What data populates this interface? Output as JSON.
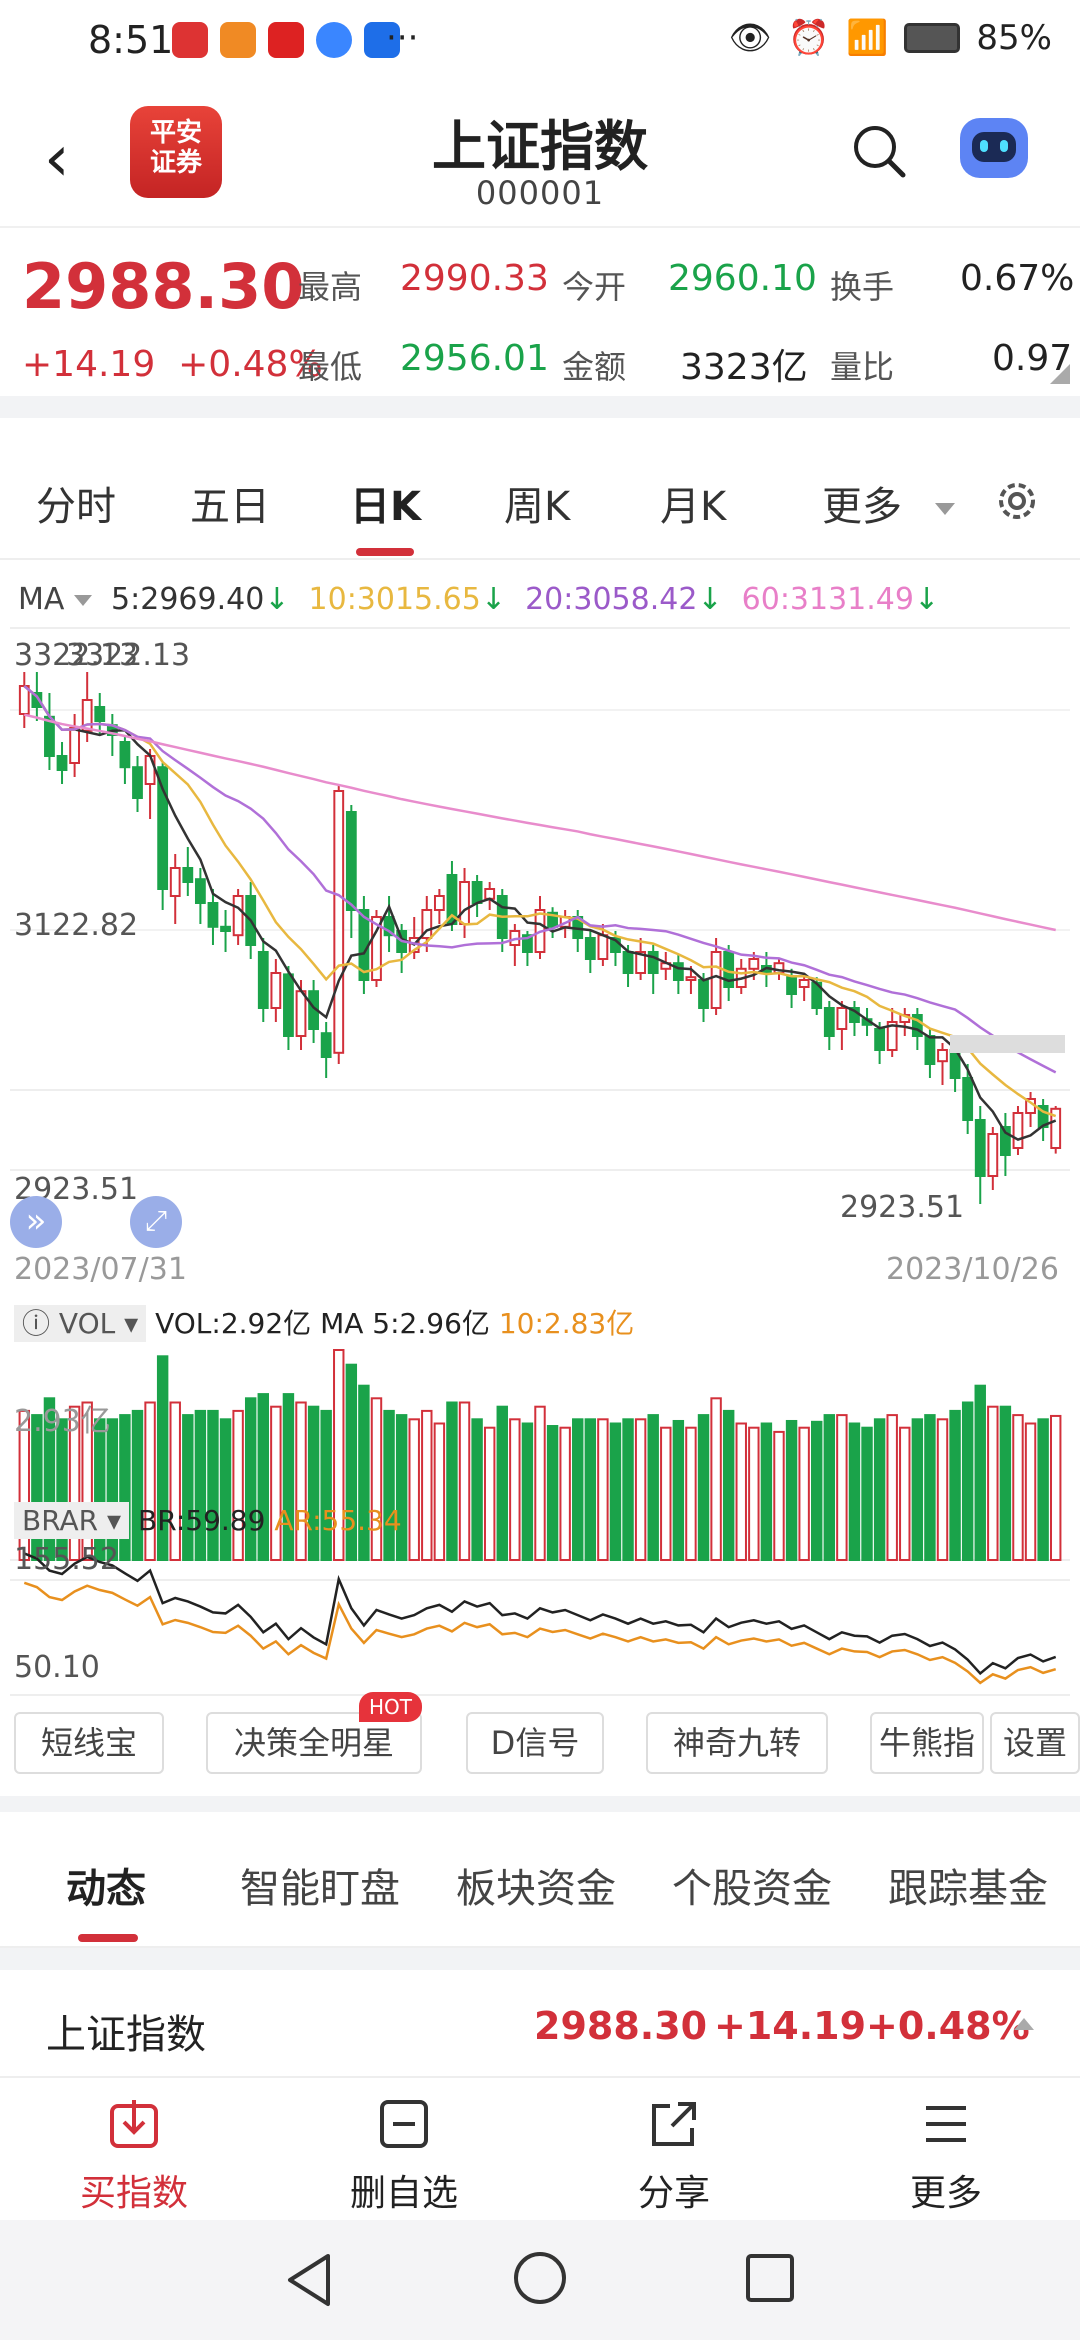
{
  "status_bar": {
    "time": "8:51",
    "battery": "85%",
    "more": "···"
  },
  "header": {
    "title": "上证指数",
    "code": "000001",
    "logo_lines": [
      "平安",
      "证券"
    ]
  },
  "quote": {
    "price": "2988.30",
    "change": "+14.19",
    "change_pct": "+0.48%",
    "high_label": "最高",
    "high": "2990.33",
    "open_label": "今开",
    "open": "2960.10",
    "turnover_label": "换手",
    "turnover": "0.67%",
    "low_label": "最低",
    "low": "2956.01",
    "amount_label": "金额",
    "amount": "3323亿",
    "vol_ratio_label": "量比",
    "vol_ratio": "0.97"
  },
  "period_tabs": [
    "分时",
    "五日",
    "日K",
    "周K",
    "月K",
    "更多"
  ],
  "ma": {
    "label": "MA",
    "ma5": "5:2969.40",
    "ma10": "10:3015.65",
    "ma20": "20:3058.42",
    "ma60": "60:3131.49",
    "arrow": "↓"
  },
  "price_axis": {
    "top": "3322.13",
    "mid": "3122.82",
    "low": "2923.51",
    "top_marker": "3322.13",
    "low_marker": "2923.51"
  },
  "dates": {
    "start": "2023/07/31",
    "end": "2023/10/26"
  },
  "vol": {
    "label": "VOL",
    "vol": "VOL:2.92亿",
    "ma5": "MA 5:2.96亿",
    "ma10": "10:2.83亿",
    "axis": "2.93亿"
  },
  "brar": {
    "label": "BRAR",
    "br": "BR:59.89",
    "ar": "AR:55.34",
    "top": "155.52",
    "bottom": "50.10"
  },
  "function_buttons": [
    "短线宝",
    "决策全明星",
    "D信号",
    "神奇九转",
    "牛熊指",
    "设置"
  ],
  "hot_badge": "HOT",
  "bottom_tabs": [
    "动态",
    "智能盯盘",
    "板块资金",
    "个股资金",
    "跟踪基金"
  ],
  "index_row": {
    "name": "上证指数",
    "price": "2988.30",
    "change": "+14.19",
    "pct": "+0.48%"
  },
  "actions": [
    "买指数",
    "删自选",
    "分享",
    "更多"
  ],
  "colors": {
    "up": "#d2303a",
    "down": "#1aa34a",
    "ma5": "#333333",
    "ma10": "#e8b840",
    "ma20": "#b070d8",
    "ma60": "#e88ccc"
  },
  "chart_data": {
    "type": "candlestick",
    "x": [
      "2023/07/31",
      "2023/10/26"
    ],
    "ylim": [
      2923.51,
      3322.13
    ],
    "candles": [
      [
        3270,
        3290,
        3260,
        3300
      ],
      [
        3285,
        3275,
        3265,
        3300
      ],
      [
        3268,
        3240,
        3230,
        3285
      ],
      [
        3240,
        3230,
        3220,
        3250
      ],
      [
        3235,
        3260,
        3225,
        3270
      ],
      [
        3258,
        3280,
        3250,
        3300
      ],
      [
        3275,
        3265,
        3255,
        3285
      ],
      [
        3262,
        3255,
        3240,
        3270
      ],
      [
        3250,
        3232,
        3220,
        3255
      ],
      [
        3232,
        3210,
        3200,
        3240
      ],
      [
        3220,
        3240,
        3195,
        3245
      ],
      [
        3232,
        3145,
        3130,
        3235
      ],
      [
        3140,
        3160,
        3120,
        3170
      ],
      [
        3160,
        3150,
        3140,
        3175
      ],
      [
        3152,
        3135,
        3120,
        3160
      ],
      [
        3135,
        3118,
        3105,
        3145
      ],
      [
        3118,
        3115,
        3100,
        3130
      ],
      [
        3112,
        3140,
        3105,
        3145
      ],
      [
        3140,
        3105,
        3095,
        3150
      ],
      [
        3100,
        3060,
        3050,
        3110
      ],
      [
        3060,
        3085,
        3050,
        3095
      ],
      [
        3084,
        3040,
        3030,
        3090
      ],
      [
        3040,
        3072,
        3030,
        3080
      ],
      [
        3072,
        3045,
        3035,
        3080
      ],
      [
        3042,
        3025,
        3010,
        3050
      ],
      [
        3028,
        3215,
        3020,
        3220
      ],
      [
        3200,
        3130,
        3110,
        3205
      ],
      [
        3130,
        3080,
        3070,
        3140
      ],
      [
        3080,
        3125,
        3075,
        3130
      ],
      [
        3125,
        3112,
        3100,
        3140
      ],
      [
        3115,
        3100,
        3085,
        3120
      ],
      [
        3100,
        3110,
        3095,
        3125
      ],
      [
        3110,
        3130,
        3100,
        3140
      ],
      [
        3130,
        3140,
        3120,
        3145
      ],
      [
        3155,
        3120,
        3115,
        3165
      ],
      [
        3120,
        3150,
        3110,
        3160
      ],
      [
        3150,
        3135,
        3125,
        3155
      ],
      [
        3138,
        3145,
        3130,
        3150
      ],
      [
        3140,
        3110,
        3100,
        3145
      ],
      [
        3105,
        3115,
        3090,
        3120
      ],
      [
        3112,
        3100,
        3090,
        3115
      ],
      [
        3100,
        3130,
        3095,
        3140
      ],
      [
        3128,
        3118,
        3110,
        3132
      ],
      [
        3118,
        3125,
        3110,
        3130
      ],
      [
        3125,
        3110,
        3100,
        3130
      ],
      [
        3110,
        3095,
        3085,
        3115
      ],
      [
        3095,
        3112,
        3090,
        3120
      ],
      [
        3110,
        3100,
        3090,
        3115
      ],
      [
        3100,
        3085,
        3075,
        3105
      ],
      [
        3085,
        3100,
        3080,
        3110
      ],
      [
        3100,
        3085,
        3070,
        3105
      ],
      [
        3088,
        3092,
        3080,
        3100
      ],
      [
        3092,
        3080,
        3070,
        3098
      ],
      [
        3080,
        3082,
        3070,
        3090
      ],
      [
        3080,
        3060,
        3050,
        3085
      ],
      [
        3060,
        3100,
        3055,
        3110
      ],
      [
        3100,
        3075,
        3065,
        3105
      ],
      [
        3075,
        3088,
        3070,
        3095
      ],
      [
        3088,
        3095,
        3080,
        3100
      ],
      [
        3090,
        3085,
        3075,
        3100
      ],
      [
        3085,
        3092,
        3080,
        3095
      ],
      [
        3082,
        3070,
        3060,
        3088
      ],
      [
        3075,
        3080,
        3065,
        3085
      ],
      [
        3078,
        3060,
        3055,
        3082
      ],
      [
        3060,
        3040,
        3030,
        3065
      ],
      [
        3045,
        3060,
        3030,
        3065
      ],
      [
        3060,
        3050,
        3040,
        3065
      ],
      [
        3052,
        3048,
        3040,
        3060
      ],
      [
        3045,
        3030,
        3020,
        3050
      ],
      [
        3030,
        3050,
        3025,
        3060
      ],
      [
        3050,
        3055,
        3040,
        3060
      ],
      [
        3055,
        3040,
        3030,
        3060
      ],
      [
        3040,
        3020,
        3010,
        3045
      ],
      [
        3022,
        3030,
        3005,
        3035
      ],
      [
        3030,
        3010,
        3000,
        3040
      ],
      [
        3010,
        2980,
        2970,
        3020
      ],
      [
        2980,
        2940,
        2920,
        2990
      ],
      [
        2940,
        2970,
        2930,
        2975
      ],
      [
        2975,
        2955,
        2940,
        2985
      ],
      [
        2960,
        2985,
        2955,
        2990
      ],
      [
        2985,
        2995,
        2975,
        3000
      ],
      [
        2990,
        2975,
        2965,
        2995
      ],
      [
        2960,
        2988,
        2956,
        2990
      ]
    ]
  }
}
